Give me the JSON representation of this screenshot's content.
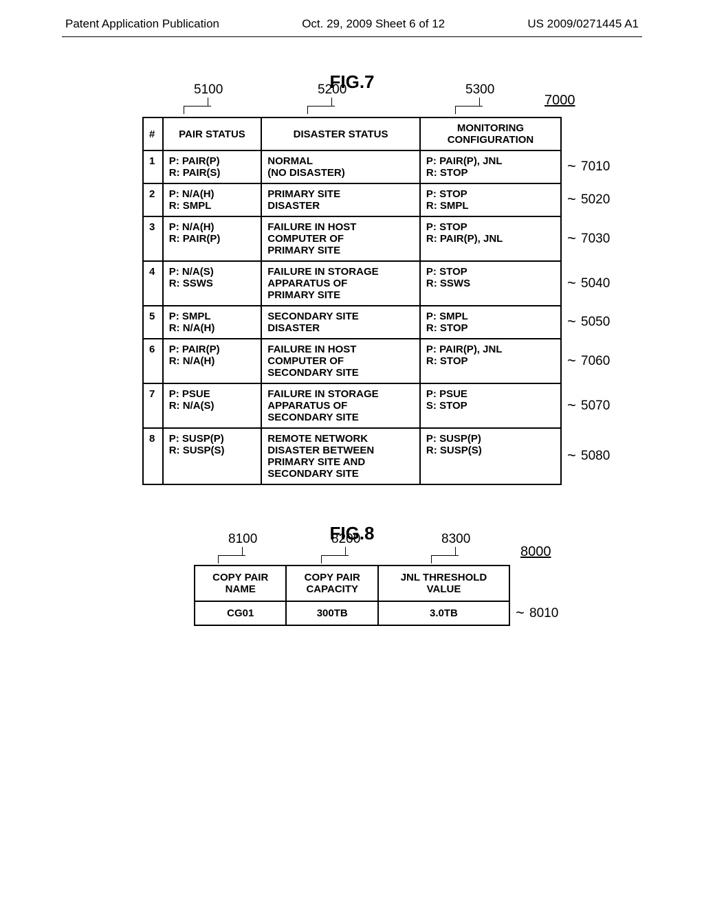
{
  "header": {
    "left": "Patent Application Publication",
    "center": "Oct. 29, 2009  Sheet 6 of 12",
    "right": "US 2009/0271445 A1"
  },
  "fig7": {
    "title": "FIG.7",
    "ref_7000": "7000",
    "col_refs": {
      "c5100": "5100",
      "c5200": "5200",
      "c5300": "5300"
    },
    "headers": {
      "num": "#",
      "pair": "PAIR STATUS",
      "disaster": "DISASTER STATUS",
      "mon": "MONITORING CONFIGURATION"
    },
    "rows": [
      {
        "n": "1",
        "pair": "P: PAIR(P)\nR: PAIR(S)",
        "disaster": "NORMAL\n(NO DISASTER)",
        "mon": "P: PAIR(P), JNL\nR: STOP",
        "ref": "7010"
      },
      {
        "n": "2",
        "pair": "P: N/A(H)\nR: SMPL",
        "disaster": "PRIMARY SITE\nDISASTER",
        "mon": "P: STOP\nR: SMPL",
        "ref": "5020"
      },
      {
        "n": "3",
        "pair": "P: N/A(H)\nR: PAIR(P)",
        "disaster": "FAILURE IN HOST\nCOMPUTER OF\nPRIMARY SITE",
        "mon": "P: STOP\nR: PAIR(P), JNL",
        "ref": "7030"
      },
      {
        "n": "4",
        "pair": "P: N/A(S)\nR: SSWS",
        "disaster": "FAILURE IN STORAGE\nAPPARATUS OF\nPRIMARY SITE",
        "mon": "P: STOP\nR: SSWS",
        "ref": "5040"
      },
      {
        "n": "5",
        "pair": "P: SMPL\nR: N/A(H)",
        "disaster": "SECONDARY SITE\nDISASTER",
        "mon": "P: SMPL\nR: STOP",
        "ref": "5050"
      },
      {
        "n": "6",
        "pair": "P: PAIR(P)\nR: N/A(H)",
        "disaster": "FAILURE IN HOST\nCOMPUTER OF\nSECONDARY SITE",
        "mon": "P: PAIR(P), JNL\nR: STOP",
        "ref": "7060"
      },
      {
        "n": "7",
        "pair": "P: PSUE\nR: N/A(S)",
        "disaster": "FAILURE IN STORAGE\nAPPARATUS OF\nSECONDARY SITE",
        "mon": "P: PSUE\nS: STOP",
        "ref": "5070"
      },
      {
        "n": "8",
        "pair": "P: SUSP(P)\nR: SUSP(S)",
        "disaster": "REMOTE NETWORK\nDISASTER BETWEEN\nPRIMARY SITE AND\nSECONDARY SITE",
        "mon": "P: SUSP(P)\nR: SUSP(S)",
        "ref": "5080"
      }
    ]
  },
  "fig8": {
    "title": "FIG.8",
    "ref_8000": "8000",
    "col_refs": {
      "c8100": "8100",
      "c8200": "8200",
      "c8300": "8300"
    },
    "headers": {
      "name": "COPY PAIR\nNAME",
      "cap": "COPY PAIR\nCAPACITY",
      "jnl": "JNL THRESHOLD\nVALUE"
    },
    "rows": [
      {
        "name": "CG01",
        "cap": "300TB",
        "jnl": "3.0TB",
        "ref": "8010"
      }
    ]
  }
}
